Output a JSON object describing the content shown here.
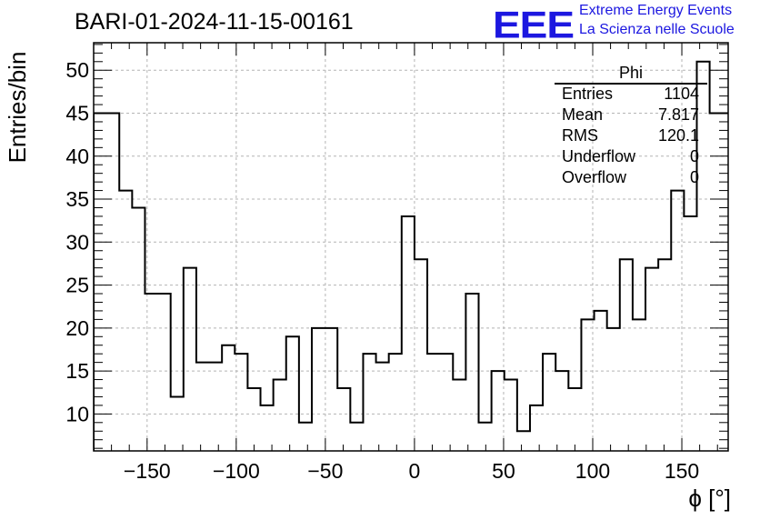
{
  "header": {
    "title": "BARI-01-2024-11-15-00161",
    "logo_text": "EEE",
    "brand_line1": "Extreme Energy Events",
    "brand_line2": "La Scienza nelle Scuole",
    "brand_color": "#1c17e0"
  },
  "stats_box": {
    "title": "Phi",
    "rows": [
      {
        "label": "Entries",
        "value": "1104"
      },
      {
        "label": "Mean",
        "value": "7.817"
      },
      {
        "label": "RMS",
        "value": "120.1"
      },
      {
        "label": "Underflow",
        "value": "0"
      },
      {
        "label": "Overflow",
        "value": "0"
      }
    ]
  },
  "chart_data": {
    "type": "histogram",
    "title": "BARI-01-2024-11-15-00161",
    "xlabel": "ϕ [°]",
    "ylabel": "Entries/bin",
    "xlim": [
      -180,
      176
    ],
    "ylim": [
      5.7,
      53.2
    ],
    "x_ticks": [
      -150,
      -100,
      -50,
      0,
      50,
      100,
      150
    ],
    "x_tick_labels": [
      "−150",
      "−100",
      "−50",
      "0",
      "50",
      "100",
      "150"
    ],
    "y_ticks": [
      10,
      15,
      20,
      25,
      30,
      35,
      40,
      45,
      50
    ],
    "y_tick_labels": [
      "10",
      "15",
      "20",
      "25",
      "30",
      "35",
      "40",
      "45",
      "50"
    ],
    "grid": true,
    "bin_edges_start": -180,
    "bin_width": 7.2,
    "counts": [
      45,
      45,
      36,
      34,
      24,
      24,
      12,
      27,
      16,
      16,
      18,
      17,
      13,
      11,
      14,
      19,
      9,
      20,
      20,
      13,
      9,
      17,
      16,
      17,
      33,
      28,
      17,
      17,
      14,
      24,
      9,
      15,
      14,
      8,
      11,
      17,
      15,
      13,
      21,
      22,
      20,
      28,
      21,
      27,
      28,
      36,
      33,
      51,
      45,
      45
    ],
    "line_color": "#000000",
    "grid_color": "#b4b4b4"
  }
}
